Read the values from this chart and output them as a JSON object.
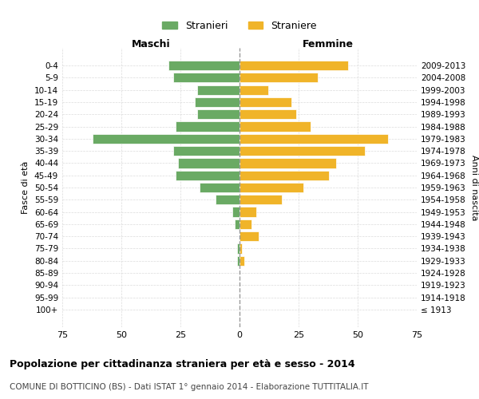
{
  "age_groups": [
    "100+",
    "95-99",
    "90-94",
    "85-89",
    "80-84",
    "75-79",
    "70-74",
    "65-69",
    "60-64",
    "55-59",
    "50-54",
    "45-49",
    "40-44",
    "35-39",
    "30-34",
    "25-29",
    "20-24",
    "15-19",
    "10-14",
    "5-9",
    "0-4"
  ],
  "birth_years": [
    "≤ 1913",
    "1914-1918",
    "1919-1923",
    "1924-1928",
    "1929-1933",
    "1934-1938",
    "1939-1943",
    "1944-1948",
    "1949-1953",
    "1954-1958",
    "1959-1963",
    "1964-1968",
    "1969-1973",
    "1974-1978",
    "1979-1983",
    "1984-1988",
    "1989-1993",
    "1994-1998",
    "1999-2003",
    "2004-2008",
    "2009-2013"
  ],
  "males": [
    0,
    0,
    0,
    0,
    1,
    1,
    0,
    2,
    3,
    10,
    17,
    27,
    26,
    28,
    62,
    27,
    18,
    19,
    18,
    28,
    30
  ],
  "females": [
    0,
    0,
    0,
    0,
    2,
    1,
    8,
    5,
    7,
    18,
    27,
    38,
    41,
    53,
    63,
    30,
    24,
    22,
    12,
    33,
    46
  ],
  "male_color": "#6aaa64",
  "female_color": "#f0b429",
  "background_color": "#ffffff",
  "grid_color": "#cccccc",
  "title": "Popolazione per cittadinanza straniera per età e sesso - 2014",
  "subtitle": "COMUNE DI BOTTICINO (BS) - Dati ISTAT 1° gennaio 2014 - Elaborazione TUTTITALIA.IT",
  "xlabel_left": "Maschi",
  "xlabel_right": "Femmine",
  "ylabel_left": "Fasce di età",
  "ylabel_right": "Anni di nascita",
  "legend_males": "Stranieri",
  "legend_females": "Straniere",
  "xlim": 75
}
